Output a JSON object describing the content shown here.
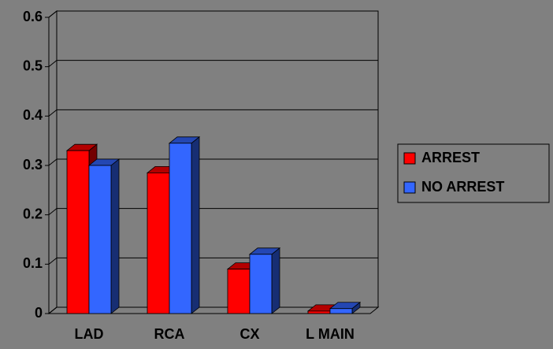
{
  "chart_data": {
    "type": "bar3d",
    "categories": [
      "LAD",
      "RCA",
      "CX",
      "L MAIN"
    ],
    "series": [
      {
        "name": "ARREST",
        "color": "#ff0000",
        "values": [
          0.33,
          0.285,
          0.09,
          0.005
        ]
      },
      {
        "name": "NO ARREST",
        "color": "#3366ff",
        "values": [
          0.3,
          0.345,
          0.12,
          0.01
        ]
      }
    ],
    "ylim": [
      0,
      0.6
    ],
    "yticks": [
      0,
      0.1,
      0.2,
      0.3,
      0.4,
      0.5,
      0.6
    ],
    "grid": true,
    "legend": "right"
  }
}
